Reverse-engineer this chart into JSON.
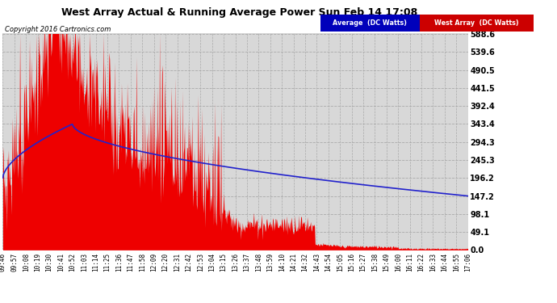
{
  "title": "West Array Actual & Running Average Power Sun Feb 14 17:08",
  "copyright": "Copyright 2016 Cartronics.com",
  "ylabel_ticks": [
    0.0,
    49.1,
    98.1,
    147.2,
    196.2,
    245.3,
    294.3,
    343.4,
    392.4,
    441.5,
    490.5,
    539.6,
    588.6
  ],
  "ymax": 588.6,
  "ymin": 0.0,
  "bg_color": "#ffffff",
  "plot_bg_color": "#d8d8d8",
  "grid_color": "#aaaaaa",
  "bar_color": "#ee0000",
  "avg_line_color": "#2222cc",
  "legend_avg_bg": "#0000bb",
  "legend_west_bg": "#cc0000",
  "legend_avg_text": "Average  (DC Watts)",
  "legend_west_text": "West Array  (DC Watts)",
  "xtick_labels": [
    "09:46",
    "09:57",
    "10:08",
    "10:19",
    "10:30",
    "10:41",
    "10:52",
    "11:03",
    "11:14",
    "11:25",
    "11:36",
    "11:47",
    "11:58",
    "12:09",
    "12:20",
    "12:31",
    "12:42",
    "12:53",
    "13:04",
    "13:15",
    "13:26",
    "13:37",
    "13:48",
    "13:59",
    "14:10",
    "14:21",
    "14:32",
    "14:43",
    "14:54",
    "15:05",
    "15:16",
    "15:27",
    "15:38",
    "15:49",
    "16:00",
    "16:11",
    "16:22",
    "16:33",
    "16:44",
    "16:55",
    "17:06"
  ]
}
